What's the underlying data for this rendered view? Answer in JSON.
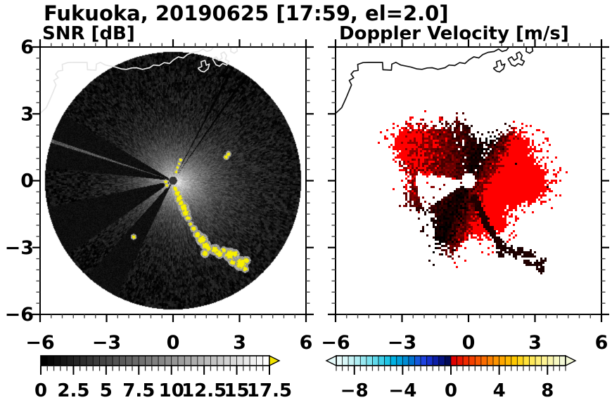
{
  "title": "Fukuoka, 20190625 [17:59, el=2.0]",
  "panels": {
    "snr": {
      "subtitle": "SNR [dB]"
    },
    "doppler": {
      "subtitle": "Doppler Velocity [m/s]"
    }
  },
  "axes": {
    "xlim": [
      -6,
      6
    ],
    "ylim": [
      -6,
      6
    ],
    "major_tick_values": [
      -6,
      -3,
      0,
      3,
      6
    ],
    "minor_tick_step": 0.5,
    "x_tick_labels": [
      "−6",
      "−3",
      "0",
      "3",
      "6"
    ],
    "y_tick_labels": [
      "6",
      "3",
      "0",
      "−3",
      "−6"
    ]
  },
  "colorbars": {
    "snr": {
      "range": [
        0,
        17.5
      ],
      "cell_step": 0.5,
      "tick_values": [
        0,
        2.5,
        5,
        7.5,
        10,
        12.5,
        15,
        17.5
      ],
      "tick_labels": [
        "0",
        "2.5",
        "5",
        "7.5",
        "10",
        "12.5",
        "15",
        "17.5"
      ],
      "ramp": [
        "#000000",
        "#ffffff"
      ],
      "over_arrow_color": "#f2e400",
      "outline_color": "#000000"
    },
    "doppler": {
      "range": [
        -9.5,
        9.5
      ],
      "cell_step": 0.5,
      "tick_values": [
        -8,
        -4,
        0,
        4,
        8
      ],
      "tick_labels": [
        "−8",
        "−4",
        "0",
        "4",
        "8"
      ],
      "colors": [
        "#e8fbfb",
        "#d8f7f8",
        "#c6f3f6",
        "#b0eef4",
        "#97e8f1",
        "#7ce1ee",
        "#5fd9ec",
        "#3fcfe9",
        "#1dc4e6",
        "#00b2e4",
        "#00a0dc",
        "#008cd4",
        "#0072d0",
        "#1458dc",
        "#1c42e0",
        "#1530cc",
        "#0c1ea6",
        "#051282",
        "#020a56",
        "#e00000",
        "#e91500",
        "#f12a00",
        "#f54000",
        "#f95600",
        "#fb6c00",
        "#fc8000",
        "#fd9400",
        "#fea600",
        "#feb800",
        "#ffc800",
        "#ffd51a",
        "#ffe13a",
        "#ffe95a",
        "#fff078",
        "#fff494",
        "#fbf6ac",
        "#f7f8c2",
        "#f3f8d6"
      ],
      "under_arrow_color": "#e6fafa",
      "over_arrow_color": "#f3f8d6",
      "outline_color": "#000000"
    }
  },
  "coastline": {
    "left_stroke": "#e6e6e6",
    "right_stroke": "#111111",
    "main": [
      [
        -6.0,
        3.02
      ],
      [
        -5.72,
        3.28
      ],
      [
        -5.52,
        3.72
      ],
      [
        -5.28,
        4.3
      ],
      [
        -5.38,
        4.5
      ],
      [
        -5.18,
        4.62
      ],
      [
        -5.3,
        4.78
      ],
      [
        -5.18,
        4.92
      ],
      [
        -4.98,
        4.95
      ],
      [
        -5.0,
        5.22
      ],
      [
        -4.76,
        5.3
      ],
      [
        -4.5,
        5.31
      ],
      [
        -3.88,
        5.31
      ],
      [
        -3.86,
        4.98
      ],
      [
        -3.48,
        4.96
      ],
      [
        -3.46,
        5.23
      ],
      [
        -3.28,
        5.31
      ],
      [
        -3.05,
        5.19
      ],
      [
        -2.6,
        5.1
      ],
      [
        -2.34,
        5.02
      ],
      [
        -2.1,
        5.0
      ],
      [
        -1.86,
        5.06
      ],
      [
        -1.64,
        5.07
      ],
      [
        -1.38,
        5.0
      ],
      [
        -1.06,
        5.07
      ],
      [
        -0.88,
        5.19
      ],
      [
        -0.62,
        5.17
      ],
      [
        -0.4,
        5.3
      ],
      [
        -0.16,
        5.26
      ],
      [
        0.02,
        5.42
      ],
      [
        0.24,
        5.56
      ],
      [
        0.46,
        5.51
      ],
      [
        0.64,
        5.66
      ],
      [
        0.88,
        5.76
      ],
      [
        1.16,
        5.8
      ],
      [
        1.36,
        5.91
      ],
      [
        1.52,
        5.8
      ],
      [
        1.72,
        5.86
      ],
      [
        1.86,
        6.05
      ]
    ],
    "harbors": [
      [
        [
          1.12,
          5.05
        ],
        [
          1.3,
          5.12
        ],
        [
          1.26,
          5.34
        ],
        [
          1.44,
          5.4
        ],
        [
          1.5,
          5.18
        ],
        [
          1.64,
          5.24
        ],
        [
          1.58,
          5.02
        ],
        [
          1.4,
          4.88
        ],
        [
          1.26,
          4.92
        ],
        [
          1.12,
          5.05
        ]
      ],
      [
        [
          1.78,
          5.46
        ],
        [
          1.95,
          5.56
        ],
        [
          2.06,
          5.4
        ],
        [
          2.22,
          5.5
        ],
        [
          2.16,
          5.7
        ],
        [
          2.3,
          5.78
        ],
        [
          2.42,
          5.62
        ],
        [
          2.36,
          5.44
        ],
        [
          2.52,
          5.36
        ],
        [
          2.42,
          5.18
        ],
        [
          2.24,
          5.26
        ],
        [
          2.1,
          5.14
        ],
        [
          1.94,
          5.2
        ],
        [
          1.86,
          5.34
        ],
        [
          1.78,
          5.46
        ]
      ],
      [
        [
          2.62,
          6.05
        ],
        [
          2.6,
          5.8
        ],
        [
          2.76,
          5.72
        ],
        [
          2.9,
          5.82
        ],
        [
          2.86,
          6.05
        ]
      ]
    ]
  },
  "chart_data": [
    {
      "type": "heatmap",
      "title": "SNR [dB]",
      "xlim": [
        -6,
        6
      ],
      "ylim": [
        -6,
        6
      ],
      "colorbar_range": [
        0,
        17.5
      ],
      "colorbar_ticks": [
        0,
        2.5,
        5,
        7.5,
        10,
        12.5,
        15,
        17.5
      ],
      "colormap": "black-to-white grayscale, yellow over-range arrow",
      "scan_radius_km": 5.78,
      "description": "Doppler-lidar PPI scan of SNR: dark disk of radius ~5.8 filling the axes, bright core near the origin fading with range (brightest toward east-southeast), three black blocked wedges toward the west-southwest (149-174, 192-215, 228-244 deg), thin dark rays at 55 and 62 deg, saturated yellow ground-clutter ridge meandering from the origin south-southeast to about (3.3,-4.0), white coastline of Fukuoka bay along the north.",
      "render": {
        "disk_radius": 5.78,
        "hole_radius": 0.18,
        "hole_gray": 42,
        "ambient": 0.8,
        "core_peak": 14.0,
        "core_scale": 1.3,
        "east_boost": 3.6,
        "east_dir": 340,
        "east_scale": 2.6,
        "blocked_wedges": [
          [
            149,
            174
          ],
          [
            192,
            215
          ],
          [
            228,
            244
          ]
        ],
        "bright_rays": [
          162
        ],
        "dark_rays": [
          55,
          62
        ],
        "ridge_clutter": [
          [
            0.1,
            -0.36,
            0.09
          ],
          [
            0.2,
            -0.56,
            0.11
          ],
          [
            0.28,
            -0.8,
            0.12
          ],
          [
            0.36,
            -1.0,
            0.1
          ],
          [
            0.48,
            -1.2,
            0.13
          ],
          [
            0.58,
            -1.44,
            0.12
          ],
          [
            0.68,
            -1.68,
            0.09
          ],
          [
            0.8,
            -1.94,
            0.07
          ],
          [
            0.94,
            -2.16,
            0.09
          ],
          [
            1.1,
            -2.42,
            0.11
          ],
          [
            1.3,
            -2.64,
            0.15
          ],
          [
            1.48,
            -2.9,
            0.13
          ],
          [
            1.44,
            -3.26,
            0.11
          ],
          [
            1.6,
            -3.04,
            0.1
          ],
          [
            1.88,
            -3.1,
            0.14
          ],
          [
            2.1,
            -3.28,
            0.12
          ],
          [
            2.3,
            -3.12,
            0.09
          ],
          [
            2.56,
            -3.32,
            0.17
          ],
          [
            2.8,
            -3.28,
            0.11
          ],
          [
            2.68,
            -3.66,
            0.1
          ],
          [
            3.06,
            -3.72,
            0.18
          ],
          [
            3.3,
            -3.58,
            0.11
          ],
          [
            3.26,
            -3.96,
            0.09
          ]
        ],
        "clutter_dashes": [
          [
            0.14,
            0.4,
            0.05
          ],
          [
            0.2,
            0.58,
            0.05
          ],
          [
            0.27,
            0.76,
            0.05
          ],
          [
            0.34,
            0.94,
            0.05
          ],
          [
            2.4,
            1.06,
            0.07
          ],
          [
            2.5,
            1.2,
            0.07
          ],
          [
            -0.33,
            -0.05,
            0.06
          ],
          [
            -0.28,
            -0.22,
            0.06
          ],
          [
            -1.78,
            -2.52,
            0.07
          ]
        ]
      }
    },
    {
      "type": "heatmap",
      "title": "Doppler Velocity [m/s]",
      "xlim": [
        -6,
        6
      ],
      "ylim": [
        -6,
        6
      ],
      "colorbar_range": [
        -9.5,
        9.5
      ],
      "colorbar_ticks": [
        -8,
        -4,
        0,
        4,
        8
      ],
      "colormap": "diverging: pale cyan - blue - navy | red - orange - yellow - cream",
      "description": "Radial-velocity dipole over an irregular blob of radius ~2.3-3.7: negative (blue/cyan, toward lidar) to the northwest/west, slightly negative navy to the north, positive (red near origin through orange to pale yellow outward) east-southeast; white blocked wedge to the west-southwest with a dotted cyan ray; navy/red ground-clutter echoes along the ridge to the south-southeast; black coastline at top.",
      "render": {
        "hole_radius": 0.34,
        "base_radius": 2.8,
        "dipole_direction_deg": 335,
        "dipole_amplitude": 6.2,
        "gain_pos": [
          0.15,
          0.35
        ],
        "gain_neg": [
          0.25,
          0.1
        ],
        "white_wedge": [
          170,
          214
        ],
        "wedge_clear_radius": 2.35,
        "white_rays": [
          [
            55,
            1.4
          ],
          [
            62,
            1.4
          ],
          [
            98,
            1.1
          ],
          [
            107,
            1.1
          ]
        ],
        "dotted_ray": {
          "azimuth": 171.5,
          "r0": 0.6,
          "r1": 3.3,
          "velocity": -6.5
        },
        "clutter": [
          [
            0.3,
            -0.85
          ],
          [
            0.4,
            -1.05
          ],
          [
            0.5,
            -1.25
          ],
          [
            0.6,
            -1.45
          ],
          [
            0.7,
            -1.7
          ],
          [
            0.8,
            -1.95
          ],
          [
            0.94,
            -2.18
          ],
          [
            1.1,
            -2.45
          ],
          [
            1.3,
            -2.68
          ],
          [
            1.48,
            -2.95
          ],
          [
            1.44,
            -3.28
          ],
          [
            1.62,
            -3.08
          ],
          [
            1.9,
            -3.15
          ],
          [
            2.12,
            -3.3
          ],
          [
            2.34,
            -3.14
          ],
          [
            2.58,
            -3.34
          ],
          [
            2.82,
            -3.3
          ],
          [
            2.7,
            -3.68
          ],
          [
            3.08,
            -3.74
          ],
          [
            3.32,
            -3.6
          ],
          [
            3.28,
            -3.98
          ]
        ],
        "clutter_navy_v": -1.0,
        "clutter_red_v": 0.7
      }
    }
  ]
}
